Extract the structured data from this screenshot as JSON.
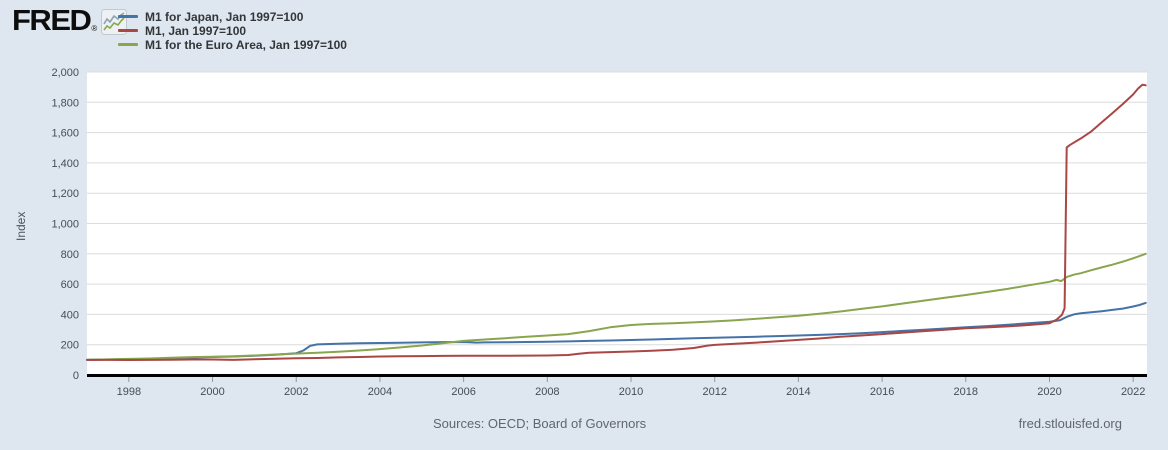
{
  "logo": {
    "text": "FRED",
    "registered": "®"
  },
  "legend": {
    "items": [
      {
        "label": "M1 for Japan, Jan 1997=100"
      },
      {
        "label": "M1, Jan 1997=100"
      },
      {
        "label": "M1 for the Euro Area, Jan 1997=100"
      }
    ]
  },
  "footer": {
    "sources": "Sources: OECD; Board of Governors",
    "site": "fred.stlouisfed.org"
  },
  "chart_data": {
    "type": "line",
    "title": "",
    "xlabel": "",
    "ylabel": "Index",
    "xlim": [
      1997.0,
      2022.33
    ],
    "ylim": [
      0,
      2000
    ],
    "xticks": [
      1998,
      2000,
      2002,
      2004,
      2006,
      2008,
      2010,
      2012,
      2014,
      2016,
      2018,
      2020,
      2022
    ],
    "yticks": [
      0,
      200,
      400,
      600,
      800,
      1000,
      1200,
      1400,
      1600,
      1800,
      2000
    ],
    "grid": "horizontal",
    "legend_position": "top-left",
    "colors": {
      "japan": "#4572a7",
      "us": "#aa4643",
      "euro": "#89a54e",
      "axis": "#000000",
      "gridline": "#dcdcdc"
    },
    "series": [
      {
        "name": "M1 for Japan, Jan 1997=100",
        "color": "#4572a7",
        "points": [
          [
            1997.0,
            100
          ],
          [
            1997.5,
            102
          ],
          [
            1998.0,
            104
          ],
          [
            1998.5,
            107
          ],
          [
            1999.0,
            111
          ],
          [
            1999.5,
            115
          ],
          [
            2000.0,
            119
          ],
          [
            2000.5,
            122
          ],
          [
            2001.0,
            127
          ],
          [
            2001.5,
            134
          ],
          [
            2002.0,
            144
          ],
          [
            2002.17,
            162
          ],
          [
            2002.33,
            192
          ],
          [
            2002.5,
            202
          ],
          [
            2003.0,
            206
          ],
          [
            2003.5,
            209
          ],
          [
            2004.0,
            211
          ],
          [
            2004.5,
            213
          ],
          [
            2005.0,
            215
          ],
          [
            2005.5,
            217
          ],
          [
            2006.0,
            218
          ],
          [
            2006.3,
            214
          ],
          [
            2006.5,
            215
          ],
          [
            2007.0,
            216
          ],
          [
            2007.5,
            218
          ],
          [
            2008.0,
            220
          ],
          [
            2008.5,
            222
          ],
          [
            2009.0,
            225
          ],
          [
            2009.5,
            228
          ],
          [
            2010.0,
            231
          ],
          [
            2010.5,
            234
          ],
          [
            2011.0,
            238
          ],
          [
            2011.5,
            243
          ],
          [
            2012.0,
            246
          ],
          [
            2012.5,
            249
          ],
          [
            2013.0,
            253
          ],
          [
            2013.5,
            257
          ],
          [
            2014.0,
            261
          ],
          [
            2014.5,
            265
          ],
          [
            2015.0,
            270
          ],
          [
            2015.5,
            276
          ],
          [
            2016.0,
            283
          ],
          [
            2016.5,
            291
          ],
          [
            2017.0,
            299
          ],
          [
            2017.5,
            307
          ],
          [
            2018.0,
            315
          ],
          [
            2018.5,
            323
          ],
          [
            2019.0,
            332
          ],
          [
            2019.5,
            341
          ],
          [
            2020.0,
            352
          ],
          [
            2020.25,
            362
          ],
          [
            2020.42,
            385
          ],
          [
            2020.58,
            400
          ],
          [
            2020.75,
            407
          ],
          [
            2021.0,
            414
          ],
          [
            2021.25,
            421
          ],
          [
            2021.5,
            430
          ],
          [
            2021.75,
            438
          ],
          [
            2022.0,
            452
          ],
          [
            2022.15,
            462
          ],
          [
            2022.3,
            476
          ]
        ]
      },
      {
        "name": "M1, Jan 1997=100",
        "color": "#aa4643",
        "points": [
          [
            1997.0,
            100
          ],
          [
            1997.5,
            100
          ],
          [
            1998.0,
            99
          ],
          [
            1998.5,
            100
          ],
          [
            1999.0,
            101
          ],
          [
            1999.5,
            102
          ],
          [
            2000.0,
            102
          ],
          [
            2000.5,
            100
          ],
          [
            2001.0,
            104
          ],
          [
            2001.5,
            107
          ],
          [
            2002.0,
            110
          ],
          [
            2002.5,
            112
          ],
          [
            2003.0,
            116
          ],
          [
            2003.5,
            119
          ],
          [
            2004.0,
            122
          ],
          [
            2004.5,
            124
          ],
          [
            2005.0,
            125
          ],
          [
            2005.5,
            126
          ],
          [
            2006.0,
            127
          ],
          [
            2006.5,
            127
          ],
          [
            2007.0,
            127
          ],
          [
            2007.5,
            128
          ],
          [
            2008.0,
            129
          ],
          [
            2008.5,
            132
          ],
          [
            2008.75,
            140
          ],
          [
            2009.0,
            147
          ],
          [
            2009.5,
            151
          ],
          [
            2010.0,
            155
          ],
          [
            2010.5,
            160
          ],
          [
            2011.0,
            167
          ],
          [
            2011.5,
            178
          ],
          [
            2011.83,
            194
          ],
          [
            2012.0,
            199
          ],
          [
            2012.5,
            206
          ],
          [
            2013.0,
            214
          ],
          [
            2013.5,
            223
          ],
          [
            2014.0,
            232
          ],
          [
            2014.5,
            241
          ],
          [
            2015.0,
            252
          ],
          [
            2015.5,
            261
          ],
          [
            2016.0,
            270
          ],
          [
            2016.5,
            280
          ],
          [
            2017.0,
            290
          ],
          [
            2017.5,
            299
          ],
          [
            2018.0,
            308
          ],
          [
            2018.5,
            314
          ],
          [
            2019.0,
            321
          ],
          [
            2019.5,
            330
          ],
          [
            2020.0,
            342
          ],
          [
            2020.17,
            366
          ],
          [
            2020.3,
            398
          ],
          [
            2020.36,
            440
          ],
          [
            2020.41,
            1502
          ],
          [
            2020.5,
            1520
          ],
          [
            2020.75,
            1562
          ],
          [
            2021.0,
            1608
          ],
          [
            2021.25,
            1668
          ],
          [
            2021.5,
            1728
          ],
          [
            2021.75,
            1788
          ],
          [
            2022.0,
            1852
          ],
          [
            2022.12,
            1892
          ],
          [
            2022.22,
            1916
          ],
          [
            2022.3,
            1912
          ]
        ]
      },
      {
        "name": "M1 for the Euro Area, Jan 1997=100",
        "color": "#89a54e",
        "points": [
          [
            1997.0,
            100
          ],
          [
            1997.5,
            103
          ],
          [
            1998.0,
            106
          ],
          [
            1998.5,
            109
          ],
          [
            1999.0,
            114
          ],
          [
            1999.5,
            118
          ],
          [
            2000.0,
            121
          ],
          [
            2000.5,
            124
          ],
          [
            2001.0,
            129
          ],
          [
            2001.5,
            135
          ],
          [
            2002.0,
            141
          ],
          [
            2002.5,
            147
          ],
          [
            2003.0,
            154
          ],
          [
            2003.5,
            162
          ],
          [
            2004.0,
            171
          ],
          [
            2004.5,
            182
          ],
          [
            2005.0,
            195
          ],
          [
            2005.5,
            210
          ],
          [
            2006.0,
            225
          ],
          [
            2006.5,
            234
          ],
          [
            2007.0,
            243
          ],
          [
            2007.5,
            252
          ],
          [
            2008.0,
            261
          ],
          [
            2008.5,
            270
          ],
          [
            2009.0,
            290
          ],
          [
            2009.5,
            315
          ],
          [
            2010.0,
            330
          ],
          [
            2010.5,
            337
          ],
          [
            2011.0,
            342
          ],
          [
            2011.5,
            347
          ],
          [
            2012.0,
            354
          ],
          [
            2012.5,
            362
          ],
          [
            2013.0,
            371
          ],
          [
            2013.5,
            381
          ],
          [
            2014.0,
            391
          ],
          [
            2014.5,
            404
          ],
          [
            2015.0,
            419
          ],
          [
            2015.5,
            436
          ],
          [
            2016.0,
            453
          ],
          [
            2016.5,
            472
          ],
          [
            2017.0,
            491
          ],
          [
            2017.5,
            510
          ],
          [
            2018.0,
            528
          ],
          [
            2018.5,
            548
          ],
          [
            2019.0,
            568
          ],
          [
            2019.5,
            592
          ],
          [
            2020.0,
            615
          ],
          [
            2020.17,
            628
          ],
          [
            2020.28,
            620
          ],
          [
            2020.42,
            648
          ],
          [
            2020.58,
            662
          ],
          [
            2020.75,
            672
          ],
          [
            2021.0,
            692
          ],
          [
            2021.25,
            710
          ],
          [
            2021.5,
            728
          ],
          [
            2021.75,
            748
          ],
          [
            2022.0,
            770
          ],
          [
            2022.15,
            785
          ],
          [
            2022.3,
            800
          ]
        ]
      }
    ]
  }
}
